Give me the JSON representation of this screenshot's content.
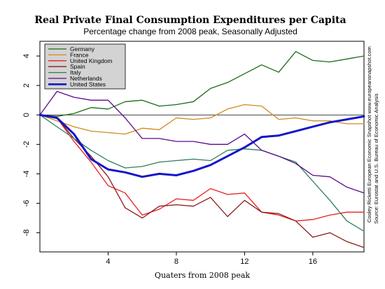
{
  "chart_data": {
    "type": "line",
    "title": "Real Private Final Consumption Expenditures per Capita",
    "subtitle": "Percentage change from 2008 peak, Seasonally Adjusted",
    "xlabel": "Quaters from 2008 peak",
    "ylabel": "",
    "xlim": [
      0,
      19
    ],
    "ylim": [
      -9.3,
      5.0
    ],
    "xticks": [
      4,
      8,
      12,
      16
    ],
    "yticks": [
      4,
      2,
      0,
      -2,
      -4,
      -6,
      -8
    ],
    "grid": false,
    "zero_line": true,
    "legend_position": "top-left",
    "x": [
      0,
      1,
      2,
      3,
      4,
      5,
      6,
      7,
      8,
      9,
      10,
      11,
      12,
      13,
      14,
      15,
      16,
      17,
      18,
      19
    ],
    "series": [
      {
        "name": "Germany",
        "color": "#1a6b1a",
        "width": 1.3,
        "values": [
          0,
          -0.1,
          0.1,
          0.5,
          0.4,
          0.9,
          1.0,
          0.6,
          0.7,
          0.9,
          1.8,
          2.2,
          2.8,
          3.4,
          2.9,
          4.3,
          3.7,
          3.6,
          3.8,
          4.0
        ]
      },
      {
        "name": "France",
        "color": "#d08a20",
        "width": 1.3,
        "values": [
          0,
          -0.4,
          -0.8,
          -1.1,
          -1.2,
          -1.3,
          -0.9,
          -1.0,
          -0.2,
          -0.3,
          -0.2,
          0.4,
          0.7,
          0.6,
          -0.3,
          -0.2,
          -0.4,
          -0.4,
          -0.6,
          -0.6
        ]
      },
      {
        "name": "United Kingdom",
        "color": "#e82020",
        "width": 1.3,
        "values": [
          0,
          -0.2,
          -1.8,
          -3.2,
          -4.8,
          -5.3,
          -6.8,
          -6.4,
          -5.7,
          -5.8,
          -5.0,
          -5.4,
          -5.3,
          -6.6,
          -6.8,
          -7.2,
          -7.1,
          -6.8,
          -6.6,
          -6.6
        ]
      },
      {
        "name": "Spain",
        "color": "#8b1a1a",
        "width": 1.3,
        "values": [
          0,
          -0.2,
          -1.6,
          -2.8,
          -4.2,
          -6.3,
          -7.0,
          -6.2,
          -6.1,
          -6.2,
          -5.6,
          -6.9,
          -5.8,
          -6.6,
          -6.7,
          -7.2,
          -8.3,
          -8.0,
          -8.6,
          -9.0
        ]
      },
      {
        "name": "Italy",
        "color": "#2e7d5a",
        "width": 1.3,
        "values": [
          0,
          -0.8,
          -1.6,
          -2.4,
          -3.1,
          -3.6,
          -3.5,
          -3.2,
          -3.1,
          -3.0,
          -3.1,
          -2.4,
          -2.3,
          -2.4,
          -2.8,
          -3.2,
          -4.5,
          -5.8,
          -7.2,
          -7.9
        ]
      },
      {
        "name": "Netherlands",
        "color": "#5a0a8a",
        "width": 1.3,
        "values": [
          0,
          1.6,
          1.2,
          1.0,
          1.0,
          -0.2,
          -1.6,
          -1.6,
          -1.8,
          -1.8,
          -2.0,
          -2.0,
          -1.3,
          -2.4,
          -2.8,
          -3.3,
          -4.1,
          -4.2,
          -4.9,
          -5.3
        ]
      },
      {
        "name": "United States",
        "color": "#1515c8",
        "width": 3.0,
        "values": [
          0,
          -0.2,
          -1.3,
          -3.0,
          -3.7,
          -3.9,
          -4.2,
          -4.0,
          -4.1,
          -3.8,
          -3.4,
          -2.8,
          -2.2,
          -1.5,
          -1.4,
          -1.1,
          -0.8,
          -0.5,
          -0.3,
          -0.1
        ]
      }
    ],
    "side_notes": [
      "Cooley Ricketti European Economic Snapshot  www.europeansnapshot.com",
      "Source: Eurostat and U.S. Bureau of Economic Analysis"
    ]
  }
}
